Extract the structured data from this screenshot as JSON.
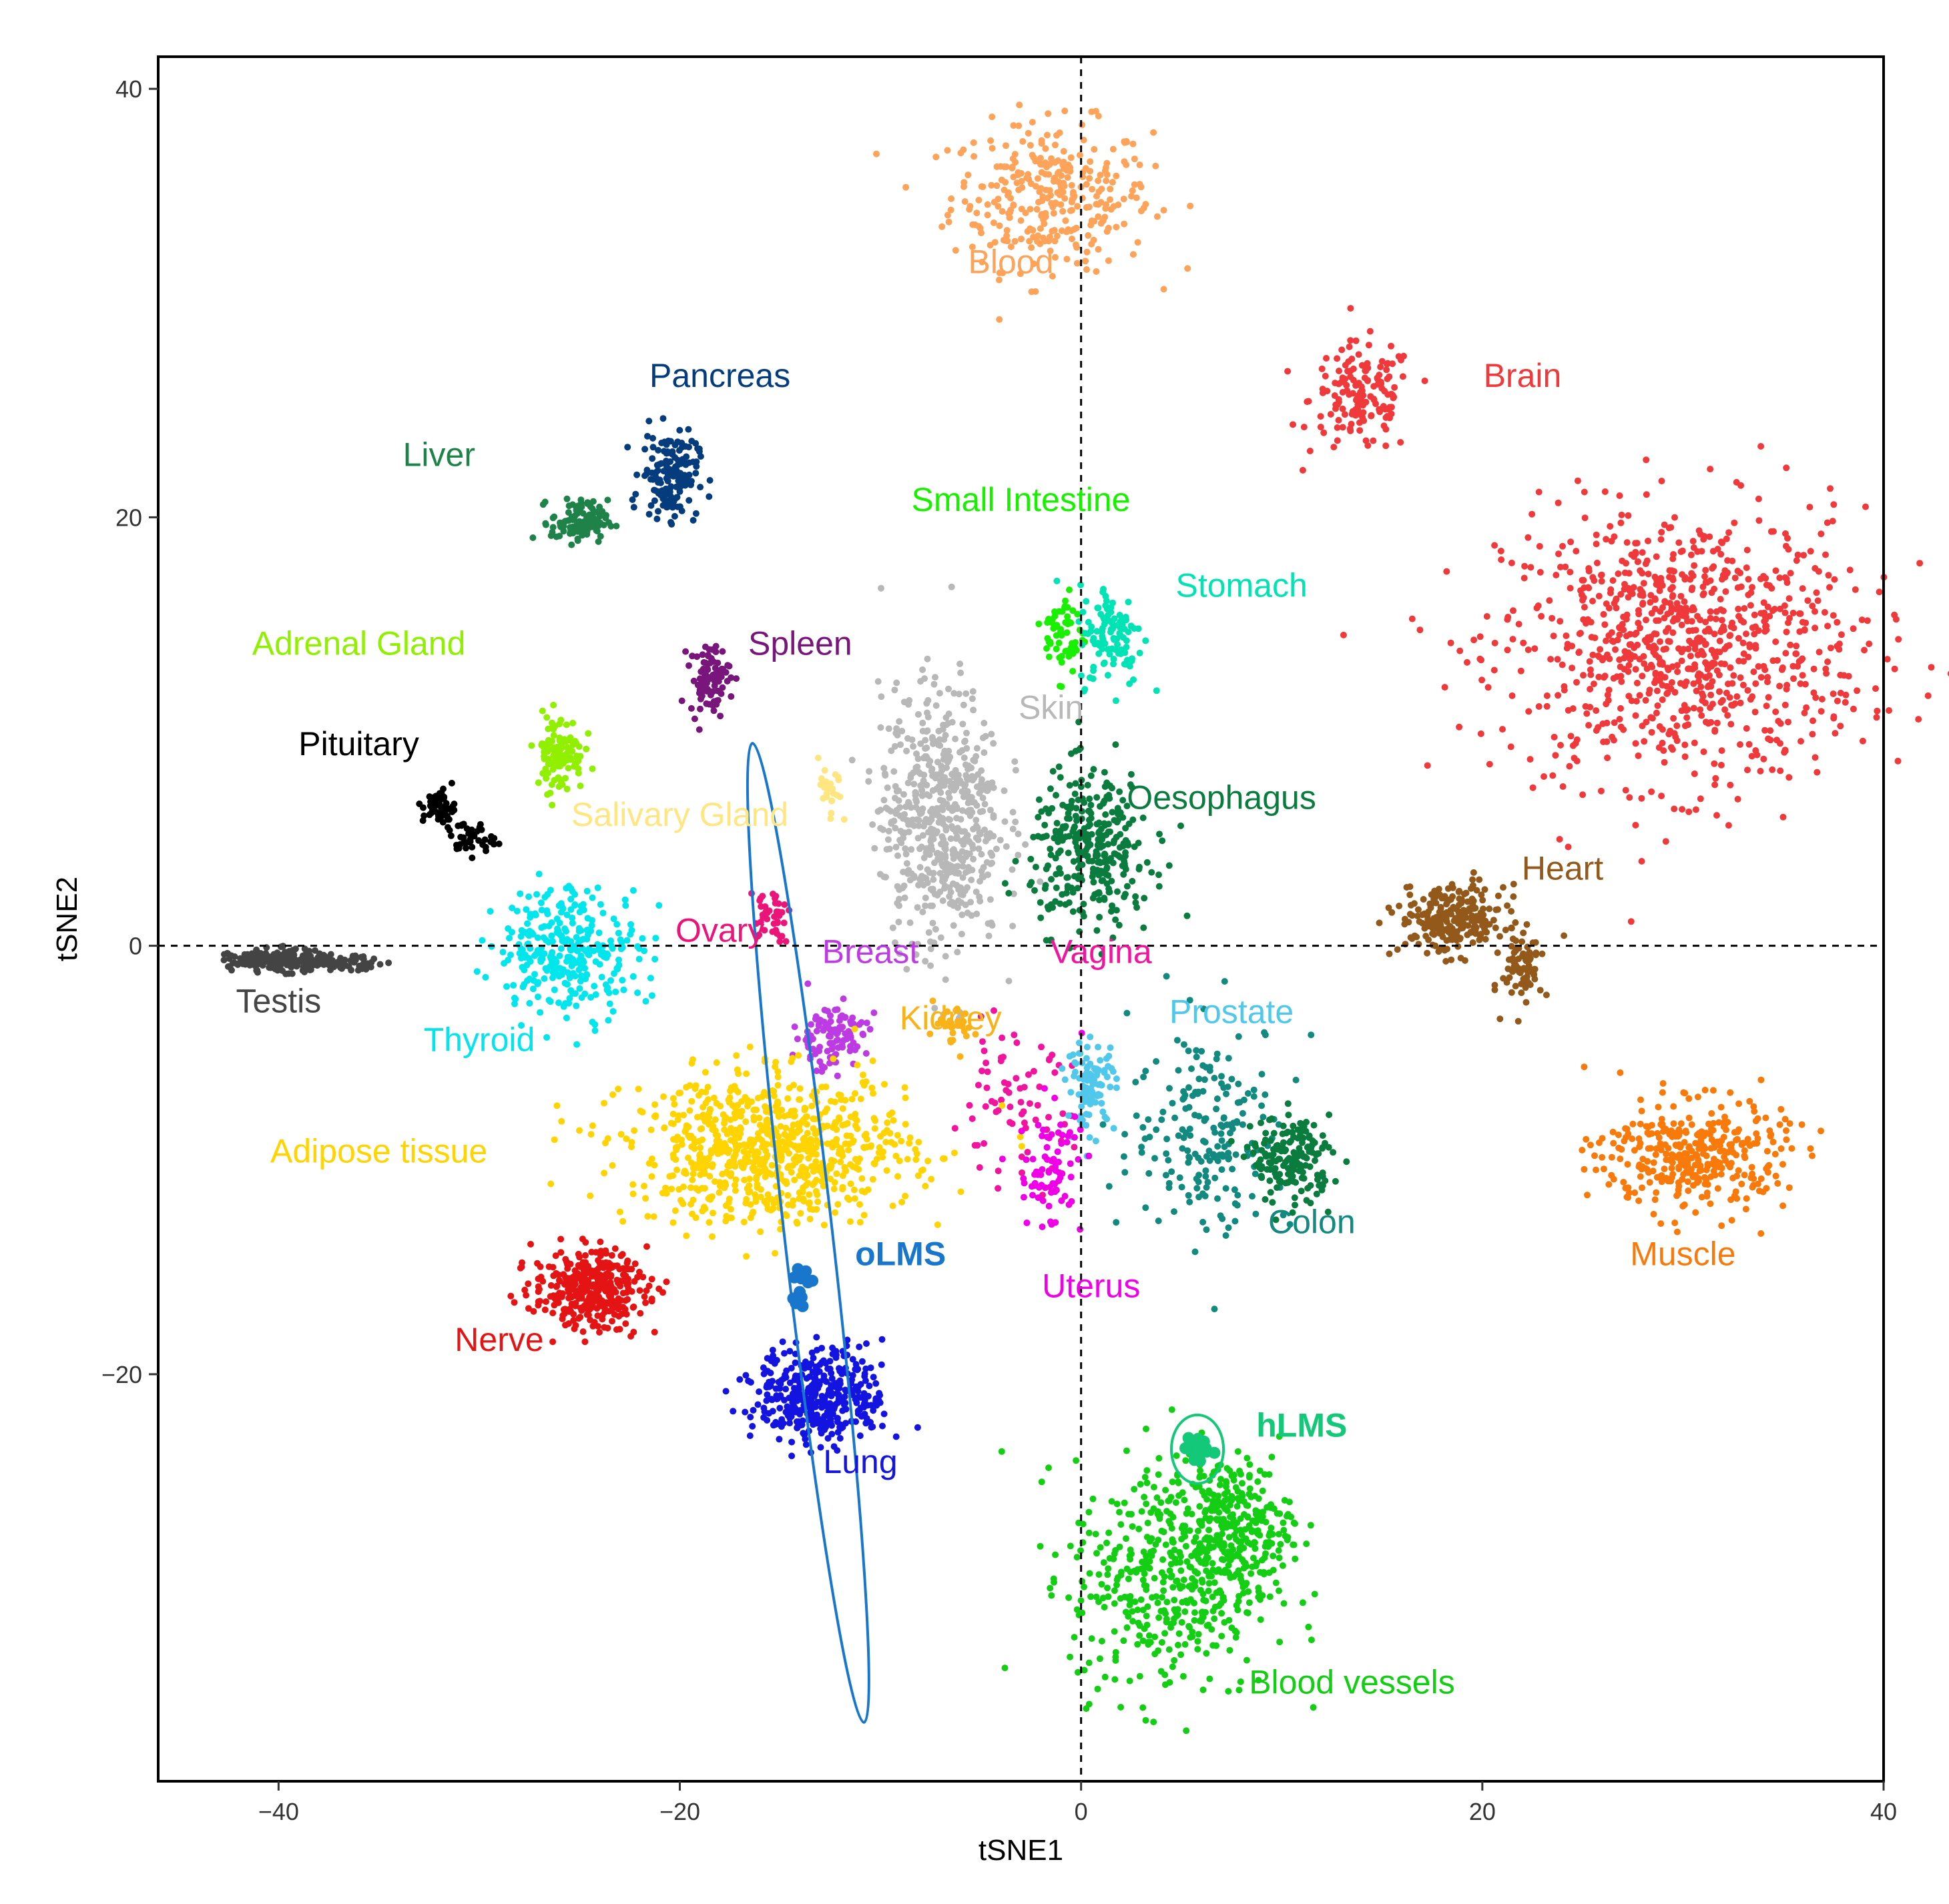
{
  "chart_data": {
    "type": "scatter",
    "title": "",
    "xlabel": "tSNE1",
    "ylabel": "tSNE2",
    "xlim": [
      -46,
      40
    ],
    "ylim": [
      -39,
      41.5
    ],
    "xticks": [
      -40,
      -20,
      0,
      20,
      40
    ],
    "yticks": [
      -20,
      0,
      20,
      40
    ],
    "xtick_labels": [
      "−40",
      "−20",
      "0",
      "20",
      "40"
    ],
    "ytick_labels": [
      "−20",
      "0",
      "20",
      "40"
    ],
    "grid": false,
    "reference_lines": [
      {
        "axis": "x",
        "value": 0,
        "style": "dashed"
      },
      {
        "axis": "y",
        "value": 0,
        "style": "dashed"
      }
    ],
    "clusters": [
      {
        "name": "Blood",
        "color": "#FDA35A",
        "center": [
          -1.5,
          35
        ],
        "spread": [
          2.5,
          1.7
        ],
        "n": 320,
        "label_at": [
          -3.5,
          31.8
        ]
      },
      {
        "name": "Brain",
        "color": "#F0393B",
        "center": [
          14,
          25.5
        ],
        "spread": [
          1.3,
          1.3
        ],
        "n": 150,
        "label_at": [
          22,
          26.5
        ]
      },
      {
        "name": "Brain",
        "color": "#F0393B",
        "center": [
          30,
          14
        ],
        "spread": [
          4.5,
          3.2
        ],
        "n": 900,
        "label_at": null
      },
      {
        "name": "Pancreas",
        "color": "#053C7E",
        "center": [
          -20.5,
          22
        ],
        "spread": [
          0.7,
          1.0
        ],
        "n": 160,
        "label_at": [
          -18,
          26.5
        ]
      },
      {
        "name": "Liver",
        "color": "#1E8249",
        "center": [
          -25,
          19.8
        ],
        "spread": [
          0.7,
          0.5
        ],
        "n": 110,
        "label_at": [
          -32,
          22.8
        ]
      },
      {
        "name": "Small Intestine",
        "color": "#18F000",
        "center": [
          -0.8,
          14.5
        ],
        "spread": [
          0.5,
          1.0
        ],
        "n": 60,
        "label_at": [
          -3,
          20.7
        ]
      },
      {
        "name": "Stomach",
        "color": "#00E3B4",
        "center": [
          1.5,
          14.5
        ],
        "spread": [
          0.8,
          1.2
        ],
        "n": 110,
        "label_at": [
          8,
          16.7
        ]
      },
      {
        "name": "Adrenal Gland",
        "color": "#90F000",
        "center": [
          -26,
          9
        ],
        "spread": [
          0.6,
          0.9
        ],
        "n": 110,
        "label_at": [
          -36,
          14
        ]
      },
      {
        "name": "Spleen",
        "color": "#79167C",
        "center": [
          -18.5,
          12.5
        ],
        "spread": [
          0.5,
          0.8
        ],
        "n": 90,
        "label_at": [
          -14,
          14
        ]
      },
      {
        "name": "Pituitary",
        "color": "#000000",
        "center": [
          -32,
          6.5
        ],
        "spread": [
          0.4,
          0.4
        ],
        "n": 60,
        "label_at": [
          -36,
          9.3
        ]
      },
      {
        "name": "Pituitary",
        "color": "#000000",
        "center": [
          -30.5,
          5
        ],
        "spread": [
          0.6,
          0.4
        ],
        "n": 40,
        "label_at": null
      },
      {
        "name": "Skin",
        "color": "#B8B8B8",
        "center": [
          -7,
          6
        ],
        "spread": [
          1.5,
          3.0
        ],
        "n": 600,
        "label_at": [
          -1.5,
          11
        ]
      },
      {
        "name": "Salivary Gland",
        "color": "#FFE680",
        "center": [
          -12.5,
          7
        ],
        "spread": [
          0.3,
          0.8
        ],
        "n": 25,
        "label_at": [
          -20,
          6
        ]
      },
      {
        "name": "Oesophagus",
        "color": "#0A7C3E",
        "center": [
          0.5,
          4.5
        ],
        "spread": [
          1.5,
          1.8
        ],
        "n": 320,
        "label_at": [
          7,
          6.8
        ]
      },
      {
        "name": "Heart",
        "color": "#93591B",
        "center": [
          18.5,
          1.2
        ],
        "spread": [
          1.3,
          0.8
        ],
        "n": 250,
        "label_at": [
          24,
          3.5
        ]
      },
      {
        "name": "Heart",
        "color": "#93591B",
        "center": [
          22,
          -1
        ],
        "spread": [
          0.5,
          0.9
        ],
        "n": 80,
        "label_at": null
      },
      {
        "name": "Testis",
        "color": "#444444",
        "center": [
          -40,
          -0.7
        ],
        "spread": [
          1.2,
          0.25
        ],
        "n": 200,
        "label_at": [
          -40,
          -2.7
        ]
      },
      {
        "name": "Testis",
        "color": "#444444",
        "center": [
          -37,
          -0.8
        ],
        "spread": [
          1.2,
          0.15
        ],
        "n": 70,
        "label_at": null
      },
      {
        "name": "Thyroid",
        "color": "#00E6EC",
        "center": [
          -25.5,
          -0.2
        ],
        "spread": [
          1.8,
          1.5
        ],
        "n": 300,
        "label_at": [
          -30,
          -4.5
        ]
      },
      {
        "name": "Ovary",
        "color": "#EB1478",
        "center": [
          -15.5,
          1.5
        ],
        "spread": [
          0.5,
          0.6
        ],
        "n": 40,
        "label_at": [
          -18,
          0.6
        ]
      },
      {
        "name": "Breast",
        "color": "#BD3BE2",
        "center": [
          -12.5,
          -4.2
        ],
        "spread": [
          0.9,
          0.8
        ],
        "n": 110,
        "label_at": [
          -10.5,
          -0.4
        ]
      },
      {
        "name": "Kidney",
        "color": "#F9B217",
        "center": [
          -6.5,
          -4
        ],
        "spread": [
          0.6,
          0.5
        ],
        "n": 30,
        "label_at": [
          -6.5,
          -3.5
        ]
      },
      {
        "name": "Vagina",
        "color": "#F0149E",
        "center": [
          -3.5,
          -7.5
        ],
        "spread": [
          1.5,
          1.6
        ],
        "n": 70,
        "label_at": [
          1,
          -0.4
        ]
      },
      {
        "name": "Prostate",
        "color": "#50C8EB",
        "center": [
          0.5,
          -6.5
        ],
        "spread": [
          0.6,
          1.0
        ],
        "n": 100,
        "label_at": [
          7.5,
          -3.2
        ]
      },
      {
        "name": "Colon",
        "color": "#138A80",
        "center": [
          6.5,
          -8.5
        ],
        "spread": [
          2.0,
          2.5
        ],
        "n": 200,
        "label_at": [
          11.5,
          -13
        ]
      },
      {
        "name": "Colon",
        "color": "#0A7C3E",
        "center": [
          10.5,
          -10
        ],
        "spread": [
          1.0,
          1.0
        ],
        "n": 180,
        "label_at": null
      },
      {
        "name": "Adipose tissue",
        "color": "#FFD400",
        "center": [
          -15.5,
          -9.5
        ],
        "spread": [
          3.5,
          1.7
        ],
        "n": 800,
        "label_at": [
          -35,
          -9.7
        ]
      },
      {
        "name": "Muscle",
        "color": "#F77A0A",
        "center": [
          30.5,
          -9.8
        ],
        "spread": [
          2.3,
          1.3
        ],
        "n": 350,
        "label_at": [
          30,
          -14.5
        ]
      },
      {
        "name": "Uterus",
        "color": "#F000E6",
        "center": [
          -1.5,
          -10.5
        ],
        "spread": [
          0.8,
          1.5
        ],
        "n": 80,
        "label_at": [
          0.5,
          -16
        ]
      },
      {
        "name": "Nerve",
        "color": "#E41414",
        "center": [
          -24.5,
          -16
        ],
        "spread": [
          1.4,
          0.9
        ],
        "n": 350,
        "label_at": [
          -29,
          -18.5
        ]
      },
      {
        "name": "Lung",
        "color": "#1414E1",
        "center": [
          -13,
          -21
        ],
        "spread": [
          1.6,
          1.1
        ],
        "n": 400,
        "label_at": [
          -11,
          -24.2
        ]
      },
      {
        "name": "Blood vessels",
        "color": "#14CE14",
        "center": [
          4.5,
          -29.5
        ],
        "spread": [
          2.5,
          2.8
        ],
        "n": 450,
        "label_at": [
          13.5,
          -34.5
        ]
      },
      {
        "name": "Blood vessels",
        "color": "#14CE14",
        "center": [
          7.5,
          -27
        ],
        "spread": [
          1.5,
          1.5
        ],
        "n": 250,
        "label_at": null
      },
      {
        "name": "oLMS",
        "color": "#1877CC",
        "center": [
          -13.8,
          -16
        ],
        "spread": [
          0.3,
          0.5
        ],
        "n": 12,
        "label_at": [
          -9,
          -14.5
        ],
        "bold": true
      },
      {
        "name": "hLMS",
        "color": "#13C878",
        "center": [
          5.8,
          -23.5
        ],
        "spread": [
          0.3,
          0.4
        ],
        "n": 25,
        "label_at": [
          11,
          -22.5
        ],
        "bold": true
      }
    ],
    "ellipses": [
      {
        "name": "oLMS",
        "color": "#1877CC",
        "center": [
          -13.6,
          -13.4
        ],
        "semi_axes": [
          1.2,
          23.0
        ],
        "angle_deg": -6.5
      },
      {
        "name": "hLMS",
        "color": "#13C878",
        "center": [
          5.8,
          -23.5
        ],
        "semi_axes": [
          1.3,
          1.6
        ],
        "angle_deg": 0
      }
    ]
  }
}
